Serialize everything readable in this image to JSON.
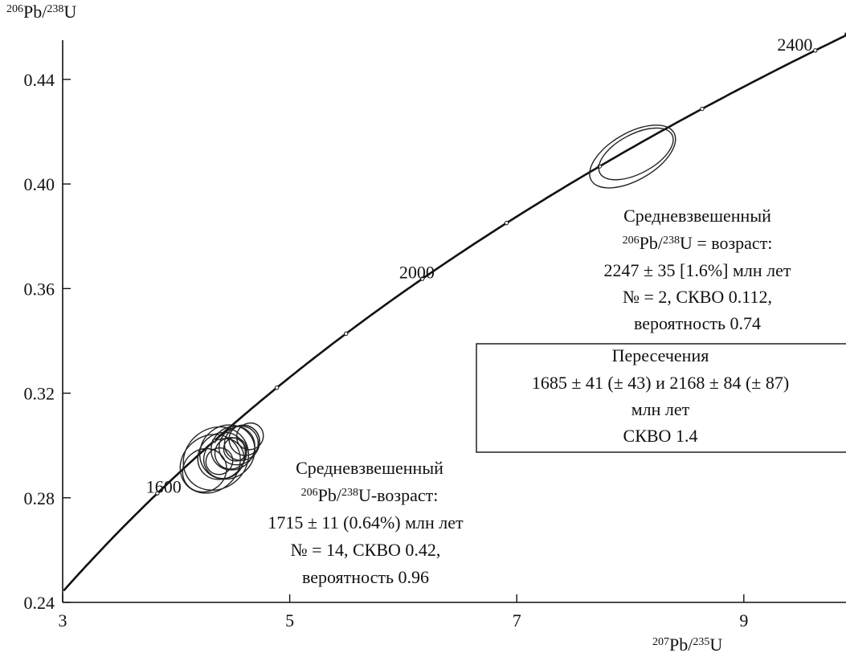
{
  "chart_data": {
    "type": "scatter",
    "subtype": "concordia-diagram",
    "xlabel": {
      "pre": "207",
      "main": "Pb/",
      "sup2": "235",
      "post": "U"
    },
    "ylabel": {
      "pre": "206",
      "main": "Pb/",
      "sup2": "238",
      "post": "U"
    },
    "xlim": [
      3,
      9.9
    ],
    "ylim": [
      0.24,
      0.455
    ],
    "x_ticks": [
      3,
      5,
      7,
      9
    ],
    "y_ticks": [
      0.24,
      0.28,
      0.32,
      0.36,
      0.4,
      0.44
    ],
    "y_tick_labels": [
      "0.24",
      "0.28",
      "0.32",
      "0.36",
      "0.40",
      "0.44"
    ],
    "grid": false,
    "concordia": {
      "age_labels": [
        {
          "label": "1600",
          "x": 3.89,
          "y": 0.282
        },
        {
          "label": "2000",
          "x": 6.12,
          "y": 0.364
        },
        {
          "label": "2400",
          "x": 9.45,
          "y": 0.451
        }
      ]
    },
    "ellipses": [
      {
        "cx": 4.3,
        "cy": 0.293,
        "rx": 0.28,
        "ry": 0.0105,
        "angle": 40
      },
      {
        "cx": 4.35,
        "cy": 0.295,
        "rx": 0.3,
        "ry": 0.0115,
        "angle": 38
      },
      {
        "cx": 4.4,
        "cy": 0.296,
        "rx": 0.22,
        "ry": 0.0085,
        "angle": 42
      },
      {
        "cx": 4.45,
        "cy": 0.2975,
        "rx": 0.25,
        "ry": 0.01,
        "angle": 40
      },
      {
        "cx": 4.5,
        "cy": 0.299,
        "rx": 0.2,
        "ry": 0.008,
        "angle": 45
      },
      {
        "cx": 4.55,
        "cy": 0.3,
        "rx": 0.18,
        "ry": 0.007,
        "angle": 42
      },
      {
        "cx": 4.58,
        "cy": 0.301,
        "rx": 0.16,
        "ry": 0.0065,
        "angle": 45
      },
      {
        "cx": 4.48,
        "cy": 0.297,
        "rx": 0.14,
        "ry": 0.006,
        "angle": 40
      },
      {
        "cx": 4.6,
        "cy": 0.302,
        "rx": 0.13,
        "ry": 0.006,
        "angle": 45
      },
      {
        "cx": 4.42,
        "cy": 0.295,
        "rx": 0.18,
        "ry": 0.0075,
        "angle": 38
      },
      {
        "cx": 4.25,
        "cy": 0.2905,
        "rx": 0.2,
        "ry": 0.008,
        "angle": 40
      },
      {
        "cx": 4.65,
        "cy": 0.3035,
        "rx": 0.12,
        "ry": 0.005,
        "angle": 45
      },
      {
        "cx": 4.52,
        "cy": 0.2985,
        "rx": 0.1,
        "ry": 0.0045,
        "angle": 42
      },
      {
        "cx": 4.38,
        "cy": 0.294,
        "rx": 0.12,
        "ry": 0.005,
        "angle": 40
      },
      {
        "cx": 8.02,
        "cy": 0.4105,
        "rx": 0.42,
        "ry": 0.009,
        "angle": 30
      },
      {
        "cx": 8.05,
        "cy": 0.4115,
        "rx": 0.36,
        "ry": 0.0075,
        "angle": 28
      }
    ],
    "annotations": {
      "upper": {
        "line1": "Средневзвешенный",
        "line2_sup1": "206",
        "line2_a": "Pb/",
        "line2_sup2": "238",
        "line2_b": "U = возраст:",
        "line3": "2247 ± 35 [1.6%] млн лет",
        "line4": "№ = 2, СКВО 0.112,",
        "line5": "вероятность 0.74"
      },
      "lower": {
        "line1": "Средневзвешенный",
        "line2_sup1": "206",
        "line2_a": "Pb/",
        "line2_sup2": "238",
        "line2_b": "U-возраст:",
        "line3": "1715 ± 11 (0.64%) млн лет",
        "line4": "№ = 14, СКВО 0.42,",
        "line5": "вероятность 0.96"
      },
      "box": {
        "line1": "Пересечения",
        "line2": "1685 ± 41 (± 43) и 2168 ± 84 (± 87)",
        "line3": "млн лет",
        "line4": "СКВО 1.4"
      }
    }
  }
}
